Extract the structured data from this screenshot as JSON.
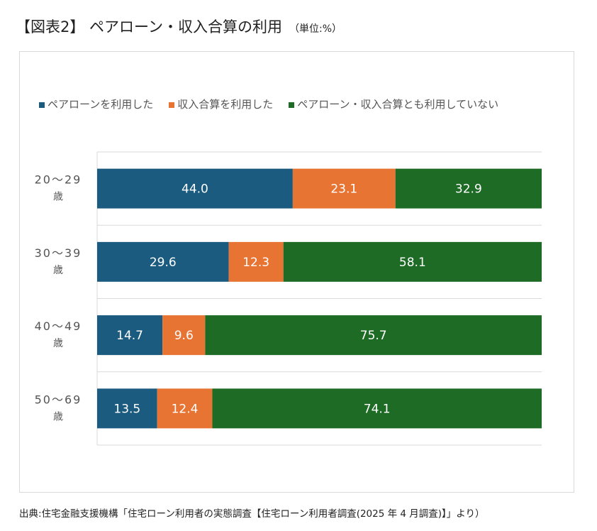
{
  "title": "【図表2】 ペアローン・収入合算の利用",
  "unit": "（単位:%）",
  "source": "出典:住宅金融支援機構「住宅ローン利用者の実態調査【住宅ローン利用者調査(2025 年 4 月調査)】」より）",
  "chart_data": {
    "type": "bar",
    "orientation": "horizontal-stacked-100",
    "categories": [
      "20～29\n歳",
      "30～39\n歳",
      "40～49\n歳",
      "50～69\n歳"
    ],
    "series": [
      {
        "name": "ペアローンを利用した",
        "color": "#1c5b80",
        "values": [
          44.0,
          29.6,
          14.7,
          13.5
        ]
      },
      {
        "name": "収入合算を利用した",
        "color": "#e87433",
        "values": [
          23.1,
          12.3,
          9.6,
          12.4
        ]
      },
      {
        "name": "ペアローン・収入合算とも利用していない",
        "color": "#1d6b25",
        "values": [
          32.9,
          58.1,
          75.7,
          74.1
        ]
      }
    ],
    "xlim": [
      0,
      100
    ],
    "legend": "top",
    "grid": true
  }
}
